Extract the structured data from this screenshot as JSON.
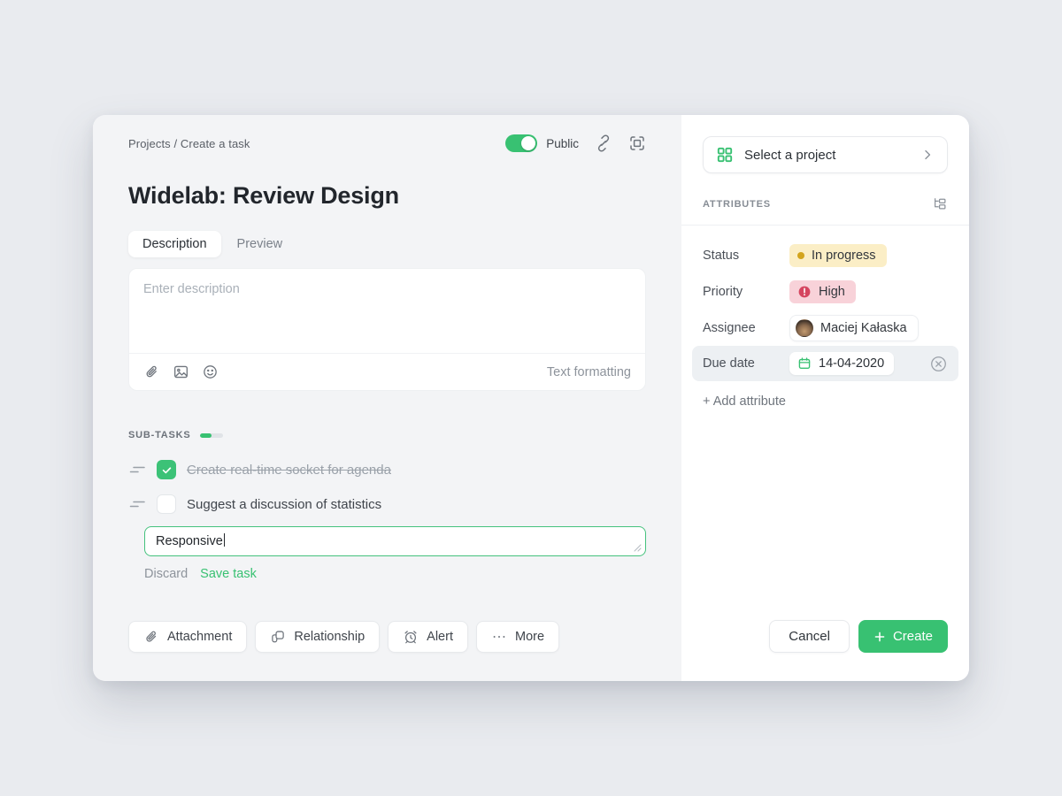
{
  "colors": {
    "accent_green": "#38c172",
    "page_bg": "#e9ebef",
    "left_panel_bg": "#f3f4f6",
    "right_panel_bg": "#ffffff",
    "status_badge_bg": "#fbeec6",
    "status_dot": "#d3a41d",
    "priority_badge_bg": "#f8d2d9",
    "priority_icon": "#d5455f",
    "due_row_bg": "#edf0f3"
  },
  "topbar": {
    "breadcrumb": "Projects / Create a task",
    "public_label": "Public",
    "public_on": true
  },
  "task": {
    "title": "Widelab: Review Design"
  },
  "tabs": [
    {
      "label": "Description",
      "active": true
    },
    {
      "label": "Preview",
      "active": false
    }
  ],
  "editor": {
    "placeholder": "Enter description",
    "value": "",
    "text_formatting_label": "Text formatting"
  },
  "subtasks": {
    "section_label": "SUB-TASKS",
    "progress_percent": 50,
    "items": [
      {
        "label": "Create real-time socket for agenda",
        "done": true
      },
      {
        "label": "Suggest a discussion of statistics",
        "done": false
      }
    ],
    "new_task_value": "Responsive",
    "discard_label": "Discard",
    "save_label": "Save task"
  },
  "actions": {
    "attachment": "Attachment",
    "relationship": "Relationship",
    "alert": "Alert",
    "more": "More"
  },
  "sidebar": {
    "select_project_label": "Select a project",
    "attributes_label": "ATTRIBUTES",
    "status_label": "Status",
    "status_value": "In progress",
    "priority_label": "Priority",
    "priority_value": "High",
    "assignee_label": "Assignee",
    "assignee_value": "Maciej Kałaska",
    "due_label": "Due date",
    "due_value": "14-04-2020",
    "add_attribute_label": "+ Add attribute",
    "cancel_label": "Cancel",
    "create_label": "Create"
  }
}
